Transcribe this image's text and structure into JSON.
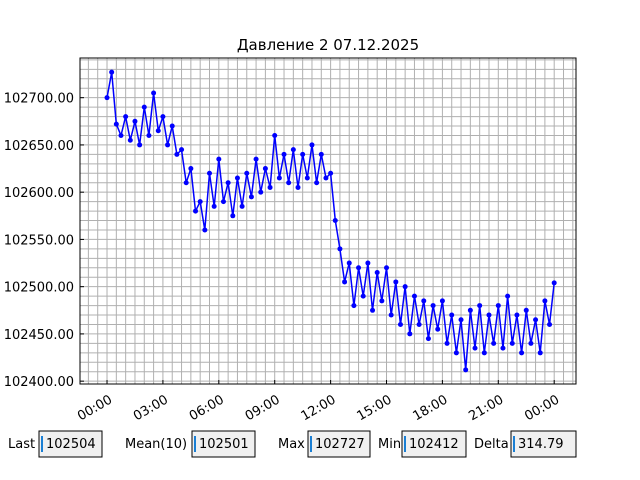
{
  "chart_data": {
    "type": "line",
    "title": "Давление 2 07.12.2025",
    "color": "#0000ff",
    "grid": true,
    "xlim": [
      -1.45,
      25.17
    ],
    "ylim": [
      102397,
      102742
    ],
    "xticks": [
      {
        "value": 0,
        "label": "00:00"
      },
      {
        "value": 3,
        "label": "03:00"
      },
      {
        "value": 6,
        "label": "06:00"
      },
      {
        "value": 9,
        "label": "09:00"
      },
      {
        "value": 12,
        "label": "12:00"
      },
      {
        "value": 15,
        "label": "15:00"
      },
      {
        "value": 18,
        "label": "18:00"
      },
      {
        "value": 21,
        "label": "21:00"
      },
      {
        "value": 24,
        "label": "00:00"
      }
    ],
    "yticks": [
      {
        "value": 102400,
        "label": "102400.00"
      },
      {
        "value": 102450,
        "label": "102450.00"
      },
      {
        "value": 102500,
        "label": "102500.00"
      },
      {
        "value": 102550,
        "label": "102550.00"
      },
      {
        "value": 102600,
        "label": "102600.00"
      },
      {
        "value": 102650,
        "label": "102650.00"
      },
      {
        "value": 102700,
        "label": "102700.00"
      }
    ],
    "x": [
      0,
      0.25,
      0.5,
      0.75,
      1,
      1.25,
      1.5,
      1.75,
      2,
      2.25,
      2.5,
      2.75,
      3,
      3.25,
      3.5,
      3.75,
      4,
      4.25,
      4.5,
      4.75,
      5,
      5.25,
      5.5,
      5.75,
      6,
      6.25,
      6.5,
      6.75,
      7,
      7.25,
      7.5,
      7.75,
      8,
      8.25,
      8.5,
      8.75,
      9,
      9.25,
      9.5,
      9.75,
      10,
      10.25,
      10.5,
      10.75,
      11,
      11.25,
      11.5,
      11.75,
      12,
      12.25,
      12.5,
      12.75,
      13,
      13.25,
      13.5,
      13.75,
      14,
      14.25,
      14.5,
      14.75,
      15,
      15.25,
      15.5,
      15.75,
      16,
      16.25,
      16.5,
      16.75,
      17,
      17.25,
      17.5,
      17.75,
      18,
      18.25,
      18.5,
      18.75,
      19,
      19.25,
      19.5,
      19.75,
      20,
      20.25,
      20.5,
      20.75,
      21,
      21.25,
      21.5,
      21.75,
      22,
      22.25,
      22.5,
      22.75,
      23,
      23.25,
      23.5,
      23.75,
      24
    ],
    "values": [
      102700,
      102727,
      102672,
      102660,
      102680,
      102655,
      102675,
      102650,
      102690,
      102660,
      102705,
      102665,
      102680,
      102650,
      102670,
      102640,
      102645,
      102610,
      102625,
      102580,
      102590,
      102560,
      102620,
      102585,
      102635,
      102590,
      102610,
      102575,
      102615,
      102585,
      102620,
      102595,
      102635,
      102600,
      102625,
      102605,
      102660,
      102615,
      102640,
      102610,
      102645,
      102605,
      102640,
      102615,
      102650,
      102610,
      102640,
      102615,
      102620,
      102570,
      102540,
      102505,
      102525,
      102480,
      102520,
      102490,
      102525,
      102475,
      102515,
      102485,
      102520,
      102470,
      102505,
      102460,
      102500,
      102450,
      102490,
      102460,
      102485,
      102445,
      102480,
      102455,
      102485,
      102440,
      102470,
      102430,
      102465,
      102412,
      102475,
      102435,
      102480,
      102430,
      102470,
      102440,
      102480,
      102435,
      102490,
      102440,
      102470,
      102430,
      102475,
      102440,
      102465,
      102430,
      102485,
      102460,
      102504
    ]
  },
  "stats": [
    {
      "label": "Last",
      "value": "102504"
    },
    {
      "label": "Mean(10)",
      "value": "102501"
    },
    {
      "label": "Max",
      "value": "102727"
    },
    {
      "label": "Min",
      "value": "102412"
    },
    {
      "label": "Delta",
      "value": "314.79"
    }
  ]
}
